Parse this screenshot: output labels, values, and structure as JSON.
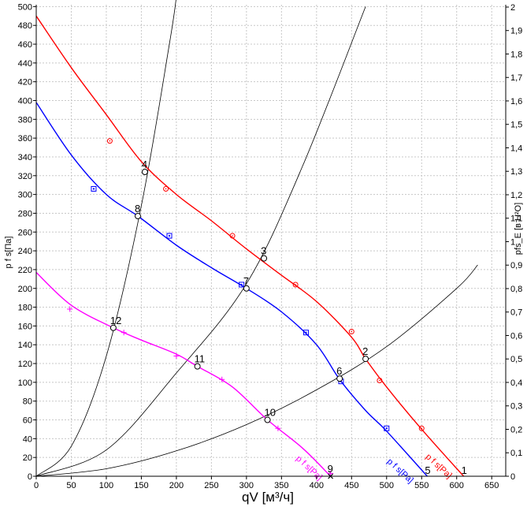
{
  "chart_data": {
    "type": "line",
    "xlabel": "qV [м³/ч]",
    "ylabel": "p f s[Па]",
    "y2label": "pfs_E [в Н²О]",
    "xlim": [
      0,
      670
    ],
    "ylim": [
      0,
      502
    ],
    "y2lim": [
      0,
      2.01
    ],
    "grid": true,
    "x_ticks": [
      0,
      50,
      100,
      150,
      200,
      250,
      300,
      350,
      400,
      450,
      500,
      550,
      600,
      650
    ],
    "y_ticks": [
      0,
      20,
      40,
      60,
      80,
      100,
      120,
      140,
      160,
      180,
      200,
      220,
      240,
      260,
      280,
      300,
      320,
      340,
      360,
      380,
      400,
      420,
      440,
      460,
      480,
      500
    ],
    "y2_ticks": [
      "0",
      "0,1",
      "0,2",
      "0,3",
      "0,4",
      "0,5",
      "0,6",
      "0,7",
      "0,8",
      "0,9",
      "1",
      "1,1",
      "1,2",
      "1,3",
      "1,4",
      "1,5",
      "1,6",
      "1,7",
      "1,8",
      "1,9",
      "2"
    ],
    "series": [
      {
        "name": "p f s[Pa]",
        "color": "#ff0000",
        "marker": "circle-dot",
        "curve": [
          [
            0,
            490
          ],
          [
            50,
            435
          ],
          [
            100,
            385
          ],
          [
            150,
            335
          ],
          [
            200,
            300
          ],
          [
            250,
            272
          ],
          [
            300,
            242
          ],
          [
            350,
            214
          ],
          [
            400,
            186
          ],
          [
            450,
            148
          ],
          [
            470,
            125
          ],
          [
            500,
            95
          ],
          [
            550,
            50
          ],
          [
            610,
            0
          ]
        ],
        "markers": [
          [
            105,
            357
          ],
          [
            185,
            306
          ],
          [
            280,
            256
          ],
          [
            370,
            204
          ],
          [
            450,
            154
          ],
          [
            490,
            102
          ],
          [
            550,
            51
          ]
        ],
        "label_at": [
          555,
          20
        ]
      },
      {
        "name": "p f s[Pa]",
        "color": "#0000ff",
        "marker": "square-dot",
        "curve": [
          [
            0,
            398
          ],
          [
            50,
            342
          ],
          [
            100,
            300
          ],
          [
            145,
            277
          ],
          [
            200,
            246
          ],
          [
            250,
            222
          ],
          [
            300,
            200
          ],
          [
            350,
            175
          ],
          [
            400,
            140
          ],
          [
            433,
            103
          ],
          [
            470,
            70
          ],
          [
            500,
            48
          ],
          [
            558,
            0
          ]
        ],
        "markers": [
          [
            82,
            306
          ],
          [
            190,
            256
          ],
          [
            293,
            204
          ],
          [
            385,
            153
          ],
          [
            435,
            101
          ],
          [
            500,
            51
          ]
        ],
        "label_at": [
          500,
          15
        ]
      },
      {
        "name": "p f s[Pa]",
        "color": "#ff00ff",
        "marker": "plus",
        "curve": [
          [
            0,
            217
          ],
          [
            50,
            182
          ],
          [
            110,
            158
          ],
          [
            150,
            145
          ],
          [
            200,
            130
          ],
          [
            230,
            117
          ],
          [
            280,
            95
          ],
          [
            330,
            60
          ],
          [
            380,
            30
          ],
          [
            420,
            0
          ]
        ],
        "markers": [
          [
            48,
            178
          ],
          [
            125,
            153
          ],
          [
            200,
            128
          ],
          [
            265,
            103
          ],
          [
            345,
            51
          ],
          [
            420,
            3
          ]
        ],
        "label_at": [
          370,
          18
        ]
      }
    ],
    "system_curves": [
      {
        "points": [
          [
            0,
            0
          ],
          [
            50,
            32
          ],
          [
            100,
            128
          ],
          [
            150,
            288
          ],
          [
            190,
            460
          ],
          [
            200,
            510
          ]
        ]
      },
      {
        "points": [
          [
            0,
            0
          ],
          [
            100,
            28
          ],
          [
            200,
            110
          ],
          [
            300,
            205
          ],
          [
            380,
            330
          ],
          [
            470,
            500
          ]
        ]
      },
      {
        "points": [
          [
            0,
            0
          ],
          [
            100,
            8
          ],
          [
            200,
            27
          ],
          [
            300,
            55
          ],
          [
            400,
            92
          ],
          [
            500,
            138
          ],
          [
            600,
            200
          ],
          [
            630,
            225
          ]
        ]
      }
    ],
    "points": [
      {
        "label": "2",
        "x": 470,
        "y": 125
      },
      {
        "label": "3",
        "x": 325,
        "y": 232
      },
      {
        "label": "4",
        "x": 155,
        "y": 324
      },
      {
        "label": "6",
        "x": 433,
        "y": 104
      },
      {
        "label": "7",
        "x": 300,
        "y": 200
      },
      {
        "label": "8",
        "x": 145,
        "y": 277
      },
      {
        "label": "9",
        "x": 420,
        "y": 0
      },
      {
        "label": "10",
        "x": 330,
        "y": 60
      },
      {
        "label": "11",
        "x": 230,
        "y": 117
      },
      {
        "label": "12",
        "x": 110,
        "y": 158
      }
    ],
    "end_labels": [
      {
        "label": "1",
        "x": 610,
        "y": 0
      },
      {
        "label": "5",
        "x": 558,
        "y": 0
      }
    ]
  }
}
